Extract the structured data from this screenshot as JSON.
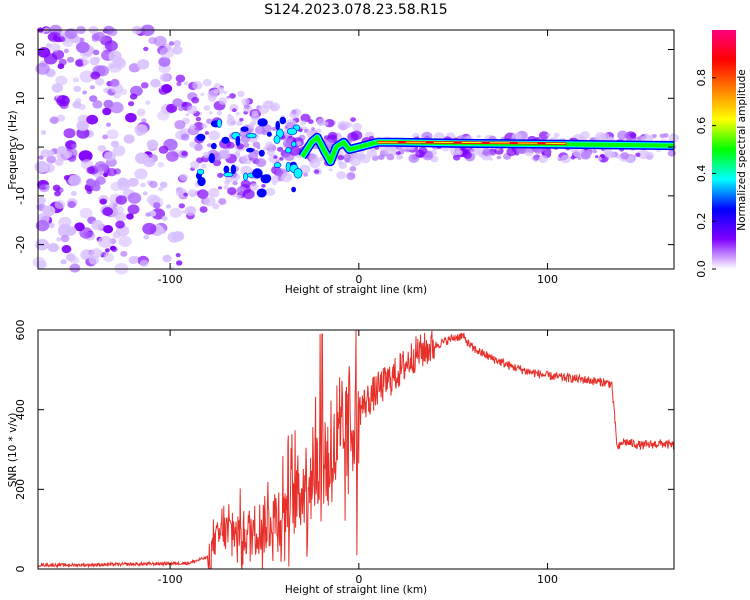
{
  "title": "S124.2023.078.23.58.R15",
  "chart_data": [
    {
      "type": "heatmap",
      "xlabel": "Height of straight line (km)",
      "ylabel": "Frequency (Hz)",
      "xlim": [
        -170,
        167
      ],
      "ylim": [
        -25,
        24
      ],
      "xticks": [
        -100,
        0,
        100
      ],
      "yticks": [
        -20,
        -10,
        0,
        10,
        20
      ],
      "colorbar": {
        "label": "Normalized spectral amplitude",
        "range": [
          0,
          1
        ],
        "ticks": [
          "0.0",
          "0.2",
          "0.4",
          "0.6",
          "0.8"
        ],
        "colors": [
          "#ffffff",
          "#8000ff",
          "#0000ff",
          "#00ffff",
          "#00ff00",
          "#ffff00",
          "#ff8000",
          "#ff0000",
          "#ff0080"
        ]
      },
      "carrier": {
        "x": [
          -30,
          -25,
          -22,
          -18,
          -15,
          -12,
          -8,
          -5,
          0,
          5,
          10,
          20,
          50,
          100,
          167
        ],
        "frequency": [
          -2,
          1,
          2,
          -1,
          -3,
          0,
          1,
          -0.5,
          0,
          0.5,
          1,
          1,
          0.8,
          0.6,
          0.3
        ]
      }
    },
    {
      "type": "line",
      "xlabel": "Height of straight line (km)",
      "ylabel": "SNR (10 * v/v)",
      "xlim": [
        -170,
        167
      ],
      "ylim": [
        0,
        600
      ],
      "xticks": [
        -100,
        0,
        100
      ],
      "yticks": [
        0,
        200,
        400,
        600
      ],
      "line_color": "#e8302a",
      "series": [
        {
          "x": [
            -170,
            -150,
            -120,
            -90,
            -80,
            -75,
            -70,
            -60,
            -50,
            -40,
            -30,
            -25,
            -20,
            -15,
            -10,
            -5,
            0,
            10,
            20,
            30,
            40,
            50,
            55,
            60,
            70,
            80,
            90,
            100,
            110,
            120,
            134,
            137,
            140,
            150,
            160,
            167
          ],
          "y": [
            10,
            10,
            12,
            15,
            30,
            80,
            100,
            90,
            110,
            150,
            200,
            250,
            260,
            280,
            300,
            350,
            400,
            450,
            490,
            540,
            560,
            580,
            585,
            555,
            530,
            510,
            495,
            485,
            480,
            475,
            465,
            300,
            320,
            310,
            315,
            310
          ]
        }
      ]
    }
  ]
}
